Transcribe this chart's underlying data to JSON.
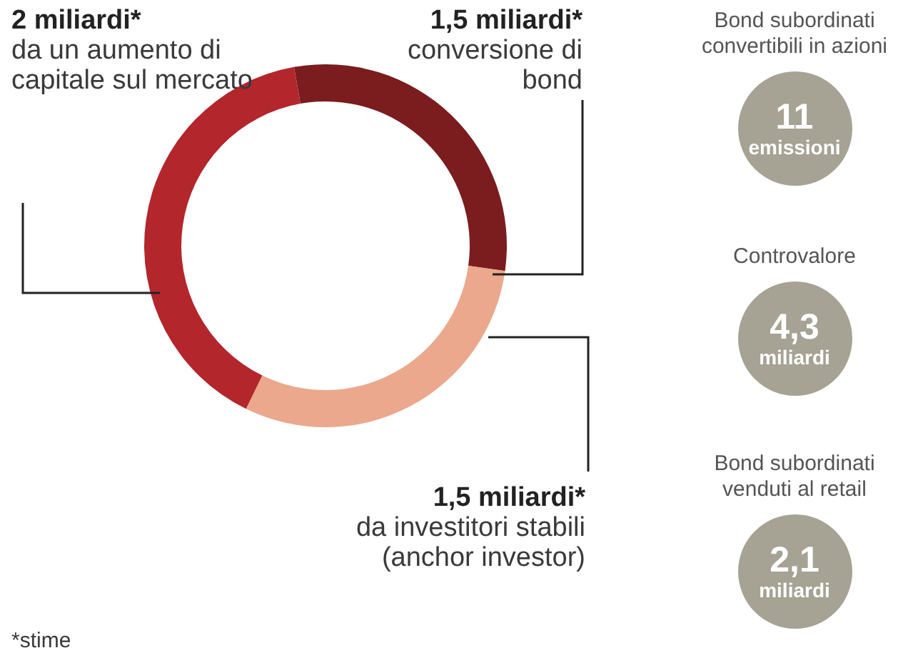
{
  "chart_data": [
    {
      "type": "donut",
      "categories": [
        "conversione di bond",
        "da investitori stabili (anchor investor)",
        "da un aumento di capitale sul mercato"
      ],
      "values": [
        1.5,
        1.5,
        2
      ],
      "value_labels": [
        "1,5 miliardi*",
        "1,5 miliardi*",
        "2 miliardi*"
      ],
      "colors": [
        "#7b1c1e",
        "#eba88c",
        "#b3262c"
      ],
      "annotations": [
        "*stime"
      ]
    },
    {
      "type": "other",
      "categories": [
        "Bond subordinati convertibili in azioni",
        "Controvalore",
        "Bond subordinati venduti al retail"
      ],
      "values": [
        11,
        4.3,
        2.1
      ],
      "value_labels": [
        "11",
        "4,3",
        "2,1"
      ],
      "annotations": [
        "emissioni",
        "miliardi",
        "miliardi"
      ],
      "color": "#a6a294"
    }
  ]
}
